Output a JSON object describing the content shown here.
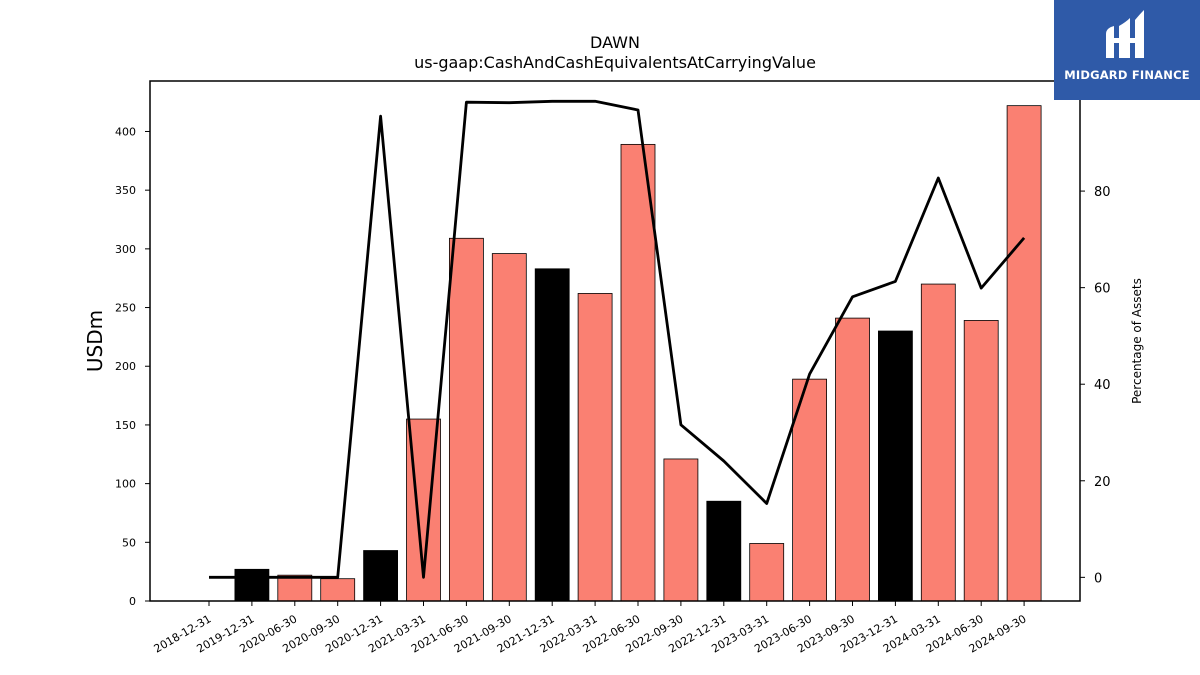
{
  "chart_data": {
    "type": "bar",
    "title": "DAWN",
    "subtitle": "us-gaap:CashAndCashEquivalentsAtCarryingValue",
    "ylabel": "USDm",
    "ylabel_right": "Percentage of Assets",
    "categories": [
      "2018-12-31",
      "2019-12-31",
      "2020-06-30",
      "2020-09-30",
      "2020-12-31",
      "2021-03-31",
      "2021-06-30",
      "2021-09-30",
      "2021-12-31",
      "2022-03-31",
      "2022-06-30",
      "2022-09-30",
      "2022-12-31",
      "2023-03-31",
      "2023-06-30",
      "2023-09-30",
      "2023-12-31",
      "2024-03-31",
      "2024-06-30",
      "2024-09-30"
    ],
    "values": [
      0,
      27,
      22,
      19,
      43,
      155,
      309,
      296,
      283,
      262,
      389,
      121,
      85,
      49,
      189,
      241,
      230,
      270,
      239,
      422
    ],
    "bar_colors": [
      "#fa8072",
      "#000000",
      "#fa8072",
      "#fa8072",
      "#000000",
      "#fa8072",
      "#fa8072",
      "#fa8072",
      "#000000",
      "#fa8072",
      "#fa8072",
      "#fa8072",
      "#000000",
      "#fa8072",
      "#fa8072",
      "#fa8072",
      "#000000",
      "#fa8072",
      "#fa8072",
      "#fa8072"
    ],
    "line_series": [
      0,
      0,
      0,
      0,
      95.5,
      0,
      98.4,
      98.3,
      98.6,
      98.6,
      96.8,
      31.6,
      24.1,
      15.3,
      42.1,
      58.1,
      61.3,
      82.7,
      59.9,
      70.3
    ],
    "ylim": [
      0,
      443
    ],
    "ylim_right": [
      -4.9,
      102.8
    ],
    "yticks": [
      0,
      50,
      100,
      150,
      200,
      250,
      300,
      350,
      400
    ],
    "yticks_right": [
      0,
      20,
      40,
      60,
      80
    ],
    "colors": {
      "bar_default": "#fa8072",
      "bar_highlight": "#000000",
      "line": "#000000"
    }
  },
  "logo": {
    "text": "MIDGARD FINANCE",
    "background": "#2f5aa8"
  }
}
